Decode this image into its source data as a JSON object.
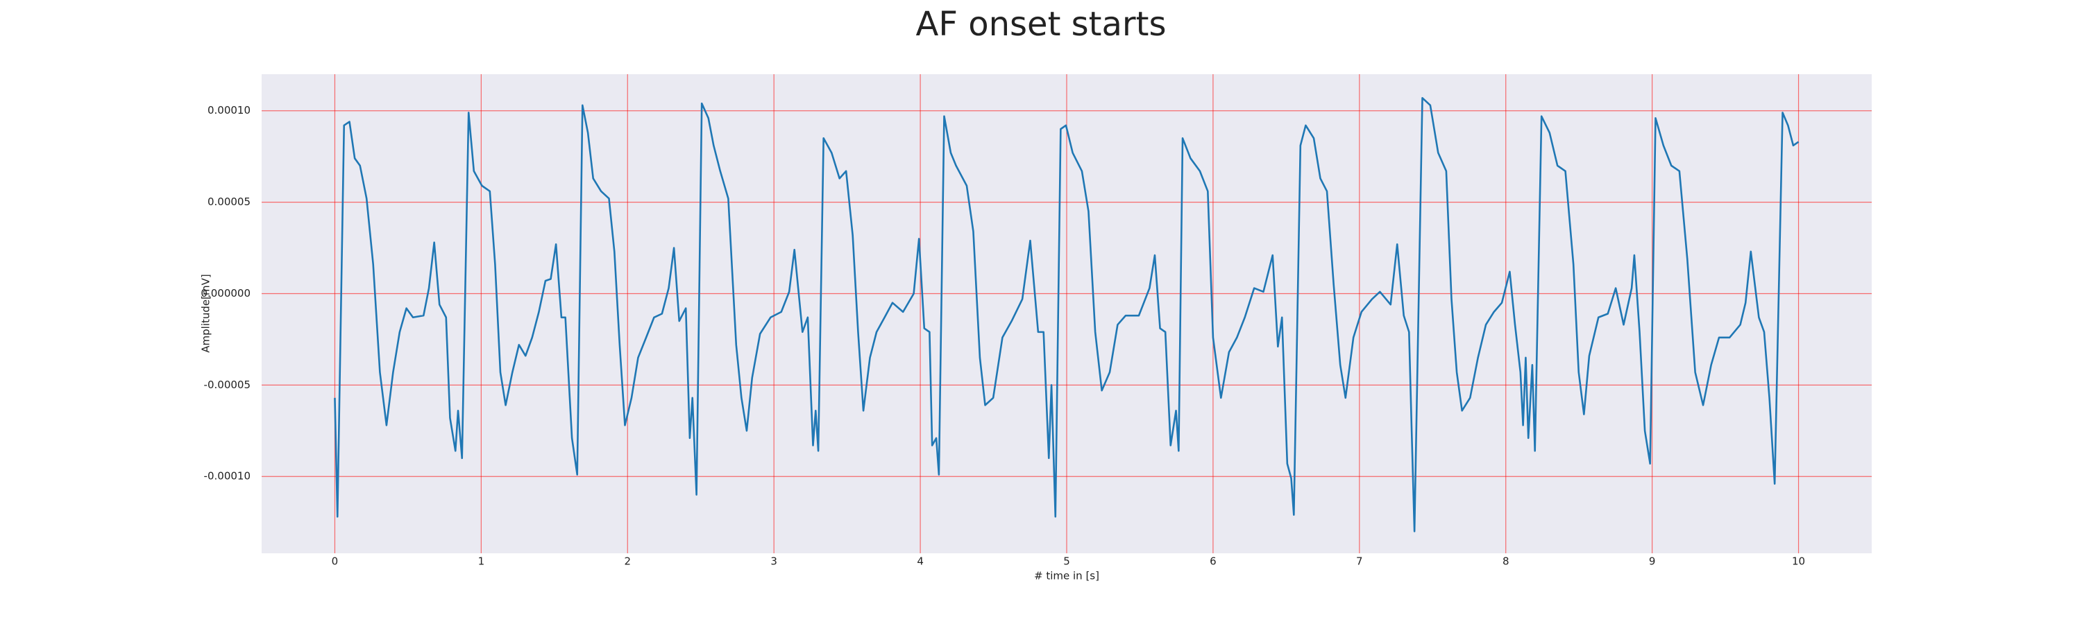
{
  "chart_data": {
    "type": "line",
    "title": "AF onset starts",
    "x_label": "# time in [s]",
    "y_label": "Amplitude[mV]",
    "color": "#1f77b4",
    "grid": true,
    "grid_color": "#ff0000",
    "xlim": [
      -0.5,
      10.5
    ],
    "xticks": [
      0,
      1,
      2,
      3,
      4,
      5,
      6,
      7,
      8,
      9,
      10
    ],
    "ylim": [
      -0.000142,
      0.00012
    ],
    "yticks": [
      {
        "value": -0.0001,
        "label": "-0.00010"
      },
      {
        "value": -5e-05,
        "label": "-0.00005"
      },
      {
        "value": 0,
        "label": "0.000000"
      },
      {
        "value": 5e-05,
        "label": "0.00005"
      },
      {
        "value": 0.0001,
        "label": "0.00010"
      }
    ],
    "x": [
      0.0,
      0.018,
      0.063,
      0.1,
      0.136,
      0.172,
      0.217,
      0.262,
      0.308,
      0.353,
      0.398,
      0.443,
      0.489,
      0.534,
      0.606,
      0.643,
      0.679,
      0.715,
      0.76,
      0.787,
      0.824,
      0.842,
      0.869,
      0.914,
      0.95,
      1.005,
      1.059,
      1.095,
      1.131,
      1.167,
      1.213,
      1.258,
      1.303,
      1.348,
      1.394,
      1.439,
      1.475,
      1.511,
      1.548,
      1.575,
      1.62,
      1.656,
      1.692,
      1.729,
      1.765,
      1.819,
      1.873,
      1.91,
      1.946,
      1.982,
      2.027,
      2.072,
      2.127,
      2.181,
      2.235,
      2.281,
      2.317,
      2.353,
      2.398,
      2.425,
      2.443,
      2.471,
      2.507,
      2.552,
      2.588,
      2.633,
      2.688,
      2.742,
      2.778,
      2.814,
      2.851,
      2.905,
      2.977,
      3.05,
      3.104,
      3.14,
      3.195,
      3.231,
      3.267,
      3.285,
      3.303,
      3.339,
      3.394,
      3.448,
      3.493,
      3.538,
      3.575,
      3.611,
      3.656,
      3.701,
      3.756,
      3.81,
      3.882,
      3.955,
      3.991,
      4.027,
      4.063,
      4.081,
      4.109,
      4.127,
      4.163,
      4.208,
      4.244,
      4.317,
      4.362,
      4.407,
      4.443,
      4.498,
      4.561,
      4.624,
      4.697,
      4.751,
      4.805,
      4.842,
      4.878,
      4.896,
      4.923,
      4.959,
      4.995,
      5.041,
      5.104,
      5.149,
      5.195,
      5.24,
      5.294,
      5.348,
      5.403,
      5.493,
      5.566,
      5.602,
      5.638,
      5.674,
      5.71,
      5.747,
      5.765,
      5.792,
      5.846,
      5.91,
      5.964,
      6.0,
      6.054,
      6.109,
      6.163,
      6.217,
      6.281,
      6.344,
      6.407,
      6.443,
      6.471,
      6.507,
      6.534,
      6.552,
      6.597,
      6.633,
      6.688,
      6.733,
      6.778,
      6.824,
      6.869,
      6.905,
      6.959,
      7.014,
      7.086,
      7.14,
      7.213,
      7.258,
      7.303,
      7.339,
      7.357,
      7.376,
      7.43,
      7.484,
      7.538,
      7.593,
      7.629,
      7.665,
      7.701,
      7.756,
      7.81,
      7.864,
      7.919,
      7.973,
      8.027,
      8.063,
      8.1,
      8.118,
      8.136,
      8.154,
      8.181,
      8.199,
      8.244,
      8.299,
      8.353,
      8.407,
      8.462,
      8.498,
      8.534,
      8.57,
      8.633,
      8.697,
      8.751,
      8.805,
      8.86,
      8.878,
      8.914,
      8.95,
      8.986,
      9.023,
      9.077,
      9.131,
      9.186,
      9.24,
      9.294,
      9.348,
      9.403,
      9.457,
      9.529,
      9.602,
      9.638,
      9.674,
      9.729,
      9.765,
      9.801,
      9.837,
      9.891,
      9.928,
      9.964,
      10.0
    ],
    "values": [
      -5.7e-05,
      -0.000122,
      9.2e-05,
      9.4e-05,
      7.4e-05,
      7e-05,
      5.2e-05,
      1.6e-05,
      -4.3e-05,
      -7.2e-05,
      -4.3e-05,
      -2.1e-05,
      -8e-06,
      -1.3e-05,
      -1.2e-05,
      3e-06,
      2.8e-05,
      -6e-06,
      -1.3e-05,
      -6.8e-05,
      -8.6e-05,
      -6.4e-05,
      -9e-05,
      9.9e-05,
      6.7e-05,
      5.9e-05,
      5.6e-05,
      1.6e-05,
      -4.3e-05,
      -6.1e-05,
      -4.3e-05,
      -2.8e-05,
      -3.4e-05,
      -2.4e-05,
      -1e-05,
      7e-06,
      8e-06,
      2.7e-05,
      -1.3e-05,
      -1.3e-05,
      -7.9e-05,
      -9.9e-05,
      0.000103,
      8.8e-05,
      6.3e-05,
      5.6e-05,
      5.2e-05,
      2.3e-05,
      -2.8e-05,
      -7.2e-05,
      -5.7e-05,
      -3.5e-05,
      -2.4e-05,
      -1.3e-05,
      -1.1e-05,
      3e-06,
      2.5e-05,
      -1.5e-05,
      -8e-06,
      -7.9e-05,
      -5.7e-05,
      -0.00011,
      0.000104,
      9.6e-05,
      8.1e-05,
      6.7e-05,
      5.2e-05,
      -2.8e-05,
      -5.7e-05,
      -7.5e-05,
      -4.6e-05,
      -2.2e-05,
      -1.3e-05,
      -1e-05,
      1e-06,
      2.4e-05,
      -2.1e-05,
      -1.3e-05,
      -8.3e-05,
      -6.4e-05,
      -8.6e-05,
      8.5e-05,
      7.7e-05,
      6.3e-05,
      6.7e-05,
      3.2e-05,
      -2.1e-05,
      -6.4e-05,
      -3.5e-05,
      -2.1e-05,
      -1.3e-05,
      -5e-06,
      -1e-05,
      0,
      3e-05,
      -1.9e-05,
      -2.1e-05,
      -8.3e-05,
      -7.9e-05,
      -9.9e-05,
      9.7e-05,
      7.7e-05,
      7e-05,
      5.9e-05,
      3.4e-05,
      -3.5e-05,
      -6.1e-05,
      -5.7e-05,
      -2.4e-05,
      -1.5e-05,
      -3e-06,
      2.9e-05,
      -2.1e-05,
      -2.1e-05,
      -9e-05,
      -5e-05,
      -0.000122,
      9e-05,
      9.2e-05,
      7.7e-05,
      6.7e-05,
      4.5e-05,
      -2.1e-05,
      -5.3e-05,
      -4.3e-05,
      -1.7e-05,
      -1.2e-05,
      -1.2e-05,
      3e-06,
      2.1e-05,
      -1.9e-05,
      -2.1e-05,
      -8.3e-05,
      -6.4e-05,
      -8.6e-05,
      8.5e-05,
      7.4e-05,
      6.7e-05,
      5.6e-05,
      -2.4e-05,
      -5.7e-05,
      -3.2e-05,
      -2.4e-05,
      -1.3e-05,
      3e-06,
      1e-06,
      2.1e-05,
      -2.9e-05,
      -1.3e-05,
      -9.3e-05,
      -0.000101,
      -0.000121,
      8.1e-05,
      9.2e-05,
      8.5e-05,
      6.3e-05,
      5.6e-05,
      5e-06,
      -3.9e-05,
      -5.7e-05,
      -2.4e-05,
      -1e-05,
      -3e-06,
      1e-06,
      -6e-06,
      2.7e-05,
      -1.2e-05,
      -2.1e-05,
      -7.5e-05,
      -0.00013,
      0.000107,
      0.000103,
      7.7e-05,
      6.7e-05,
      -3e-06,
      -4.3e-05,
      -6.4e-05,
      -5.7e-05,
      -3.5e-05,
      -1.7e-05,
      -1e-05,
      -5e-06,
      1.2e-05,
      -1.7e-05,
      -4.3e-05,
      -7.2e-05,
      -3.5e-05,
      -7.9e-05,
      -3.9e-05,
      -8.6e-05,
      9.7e-05,
      8.8e-05,
      7e-05,
      6.7e-05,
      1.6e-05,
      -4.3e-05,
      -6.6e-05,
      -3.4e-05,
      -1.3e-05,
      -1.1e-05,
      3e-06,
      -1.7e-05,
      3e-06,
      2.1e-05,
      -2.1e-05,
      -7.5e-05,
      -9.3e-05,
      9.6e-05,
      8.1e-05,
      7e-05,
      6.7e-05,
      1.9e-05,
      -4.3e-05,
      -6.1e-05,
      -3.9e-05,
      -2.4e-05,
      -2.4e-05,
      -1.7e-05,
      -5e-06,
      2.3e-05,
      -1.3e-05,
      -2.1e-05,
      -5.7e-05,
      -0.000104,
      9.9e-05,
      9.2e-05,
      8.1e-05,
      8.3e-05
    ]
  }
}
